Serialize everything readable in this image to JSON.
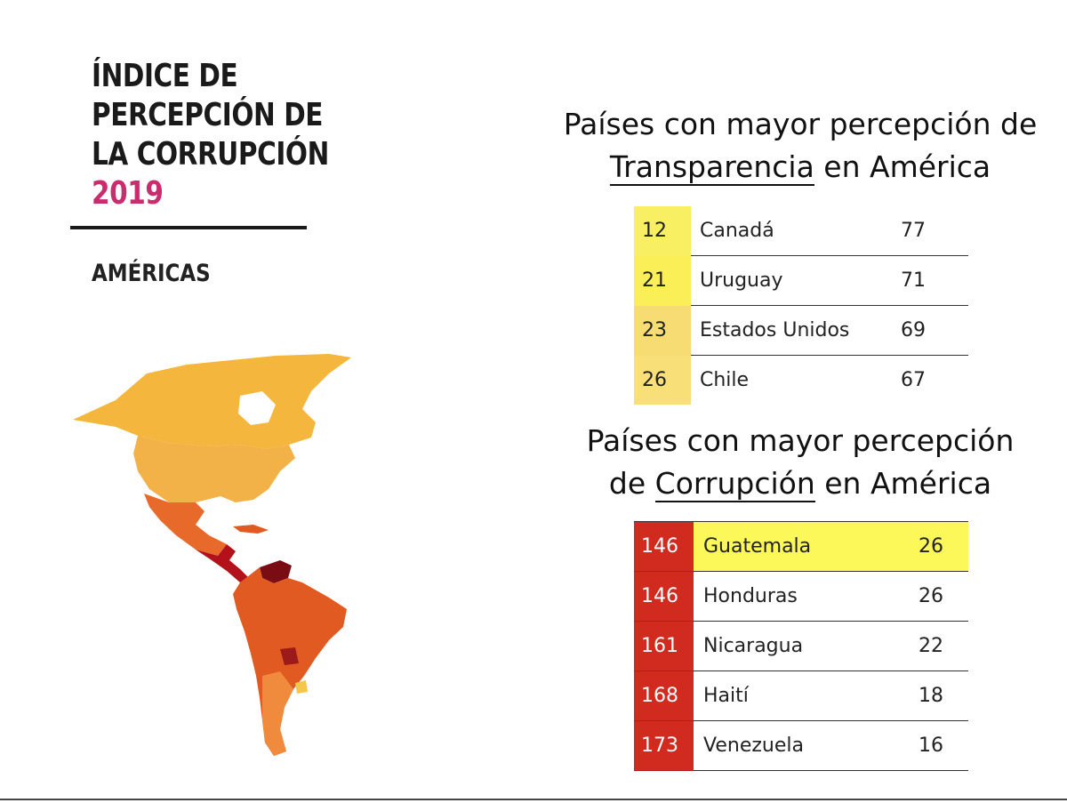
{
  "title": {
    "lines": [
      "ÍNDICE DE",
      "PERCEPCIÓN DE",
      "LA CORRUPCIÓN"
    ],
    "year": "2019"
  },
  "region": "AMÉRICAS",
  "transparency": {
    "heading_line1": "Países con mayor percepción de",
    "heading_keyword": "Transparencia",
    "heading_rest": " en América",
    "rows": [
      {
        "rank": "12",
        "country": "Canadá",
        "score": "77"
      },
      {
        "rank": "21",
        "country": "Uruguay",
        "score": "71"
      },
      {
        "rank": "23",
        "country": "Estados Unidos",
        "score": "69"
      },
      {
        "rank": "26",
        "country": "Chile",
        "score": "67"
      }
    ]
  },
  "corruption": {
    "heading_line1": "Países con mayor percepción",
    "heading_prefix": "de ",
    "heading_keyword": "Corrupción",
    "heading_rest": " en América",
    "rows": [
      {
        "rank": "146",
        "country": "Guatemala",
        "score": "26"
      },
      {
        "rank": "146",
        "country": "Honduras",
        "score": "26"
      },
      {
        "rank": "161",
        "country": "Nicaragua",
        "score": "22"
      },
      {
        "rank": "168",
        "country": "Haití",
        "score": "18"
      },
      {
        "rank": "173",
        "country": "Venezuela",
        "score": "16"
      }
    ]
  },
  "colors": {
    "year": "#c92d6e",
    "transparency_rank": "#f9ef62",
    "corruption_rank": "#d12a1f",
    "highlight_row": "#fcf85a",
    "map_high": "#f4b63c",
    "map_mid": "#e05a22",
    "map_low": "#b3121a",
    "map_lowest": "#7a0d14"
  }
}
